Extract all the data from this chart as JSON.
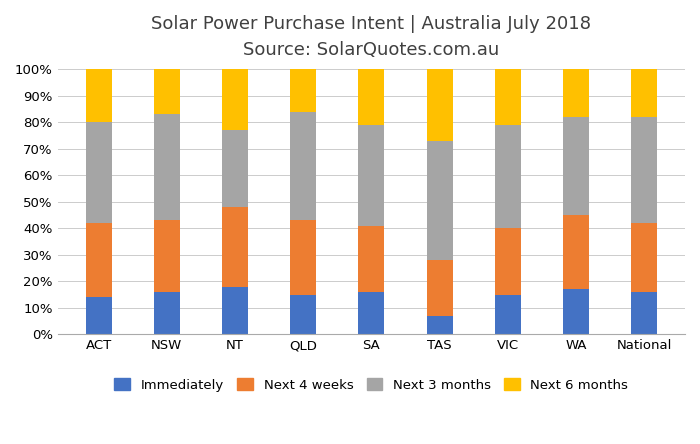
{
  "categories": [
    "ACT",
    "NSW",
    "NT",
    "QLD",
    "SA",
    "TAS",
    "VIC",
    "WA",
    "National"
  ],
  "series": {
    "Immediately": [
      14,
      16,
      18,
      15,
      16,
      7,
      15,
      17,
      16
    ],
    "Next 4 weeks": [
      28,
      27,
      30,
      28,
      25,
      21,
      25,
      28,
      26
    ],
    "Next 3 months": [
      38,
      40,
      29,
      41,
      38,
      45,
      39,
      37,
      40
    ],
    "Next 6 months": [
      20,
      17,
      23,
      16,
      21,
      27,
      21,
      18,
      18
    ]
  },
  "colors": {
    "Immediately": "#4472C4",
    "Next 4 weeks": "#ED7D31",
    "Next 3 months": "#A5A5A5",
    "Next 6 months": "#FFC000"
  },
  "title_line1": "Solar Power Purchase Intent | Australia July 2018",
  "title_line2": "Source: SolarQuotes.com.au",
  "ylim": [
    0,
    100
  ],
  "yticks": [
    0,
    10,
    20,
    30,
    40,
    50,
    60,
    70,
    80,
    90,
    100
  ],
  "ytick_labels": [
    "0%",
    "10%",
    "20%",
    "30%",
    "40%",
    "50%",
    "60%",
    "70%",
    "80%",
    "90%",
    "100%"
  ],
  "background_color": "#FFFFFF",
  "grid_color": "#CCCCCC",
  "title_fontsize": 13,
  "tick_fontsize": 9.5,
  "legend_fontsize": 9.5,
  "bar_width": 0.38
}
